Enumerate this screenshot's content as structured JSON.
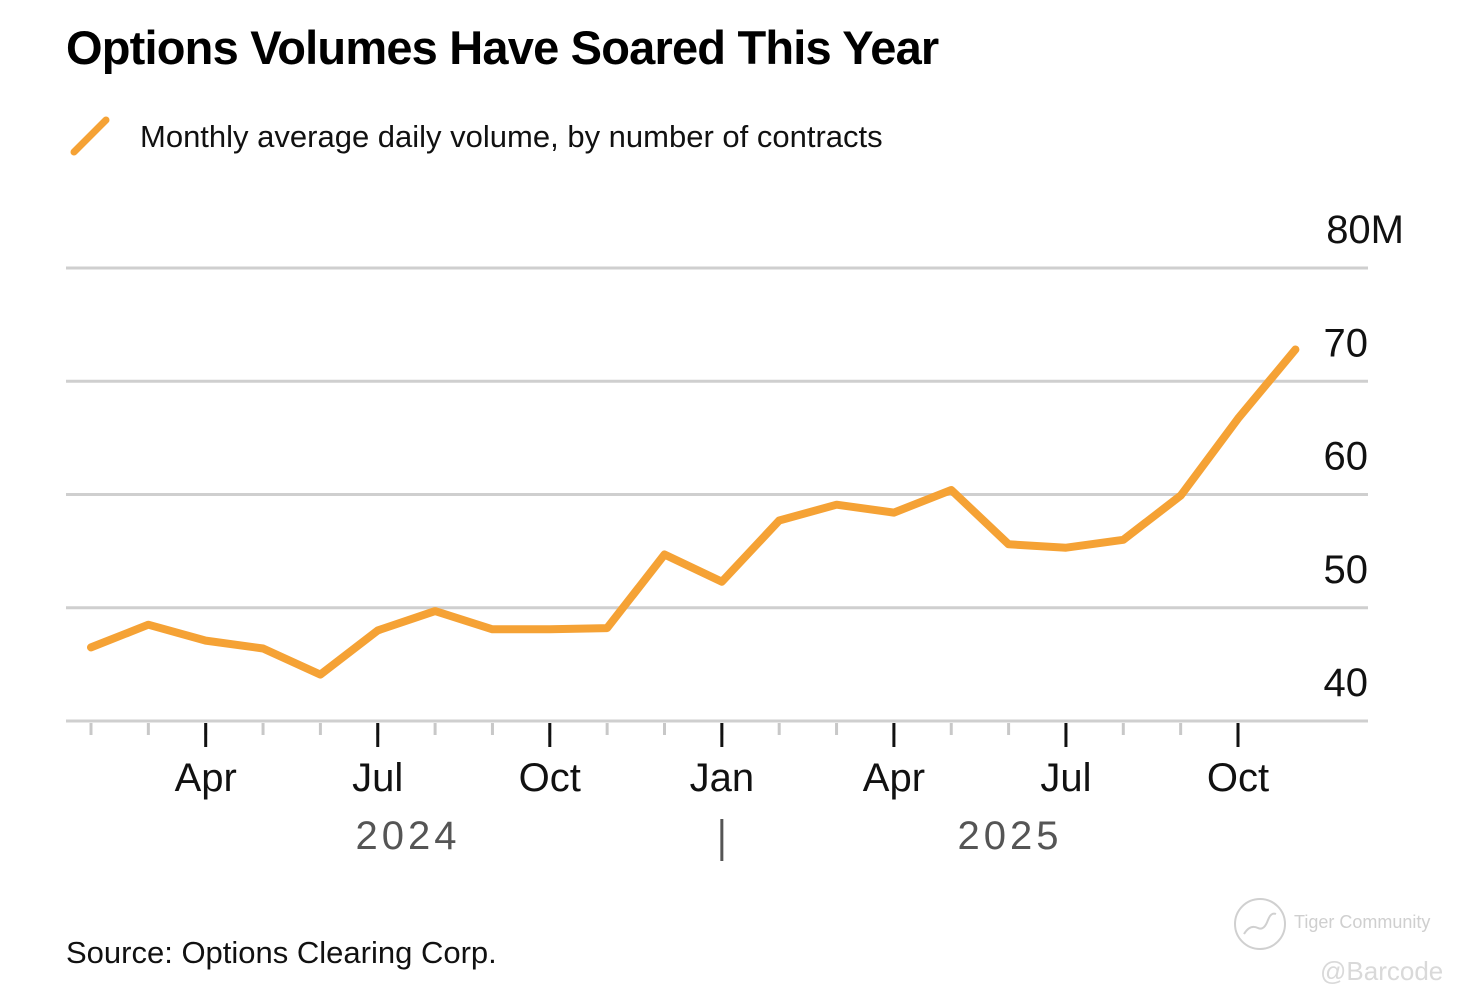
{
  "chart_data": {
    "type": "line",
    "title": "Options Volumes Have Soared This Year",
    "legend": [
      {
        "label": "Monthly average daily volume, by number of contracts",
        "color": "#F5A235",
        "placement": "top-left"
      }
    ],
    "xlabel": "",
    "ylabel": "",
    "y_unit_suffix": "M",
    "ylim": [
      40,
      80
    ],
    "yticks": [
      40,
      50,
      60,
      70,
      80
    ],
    "ytick_labels": [
      "40",
      "50",
      "60",
      "70",
      "80M"
    ],
    "y_axis_side": "right",
    "grid": true,
    "x": [
      "2024-02",
      "2024-03",
      "2024-04",
      "2024-05",
      "2024-06",
      "2024-07",
      "2024-08",
      "2024-09",
      "2024-10",
      "2024-11",
      "2024-12",
      "2025-01",
      "2025-02",
      "2025-03",
      "2025-04",
      "2025-05",
      "2025-06",
      "2025-07",
      "2025-08",
      "2025-09",
      "2025-10",
      "2025-11"
    ],
    "xlim": [
      "2024-02",
      "2025-11"
    ],
    "x_month_ticks": [
      "2024-02",
      "2024-03",
      "2024-04",
      "2024-05",
      "2024-06",
      "2024-07",
      "2024-08",
      "2024-09",
      "2024-10",
      "2024-11",
      "2024-12",
      "2025-01",
      "2025-02",
      "2025-03",
      "2025-04",
      "2025-05",
      "2025-06",
      "2025-07",
      "2025-08",
      "2025-09",
      "2025-10"
    ],
    "x_major_ticks": [
      {
        "date": "2024-04",
        "label": "Apr"
      },
      {
        "date": "2024-07",
        "label": "Jul"
      },
      {
        "date": "2024-10",
        "label": "Oct"
      },
      {
        "date": "2025-01",
        "label": "Jan"
      },
      {
        "date": "2025-04",
        "label": "Apr"
      },
      {
        "date": "2025-07",
        "label": "Jul"
      },
      {
        "date": "2025-10",
        "label": "Oct"
      }
    ],
    "year_labels": [
      {
        "label": "2024",
        "center": "2024-07.5"
      },
      {
        "label": "2025",
        "center": "2025-06"
      }
    ],
    "year_divider": "2025-01",
    "series": [
      {
        "name": "Monthly average daily volume, by number of contracts",
        "color": "#F5A235",
        "values": [
          46.5,
          48.5,
          47.1,
          46.4,
          44.1,
          48.0,
          49.7,
          48.1,
          48.1,
          48.2,
          54.7,
          52.3,
          57.7,
          59.1,
          58.4,
          60.4,
          55.6,
          55.3,
          56.0,
          59.9,
          66.7,
          72.8
        ]
      }
    ]
  },
  "footer": {
    "source": "Source: Options Clearing Corp."
  },
  "watermark": {
    "brand": "Tiger Community",
    "handle": "@Barcode"
  }
}
